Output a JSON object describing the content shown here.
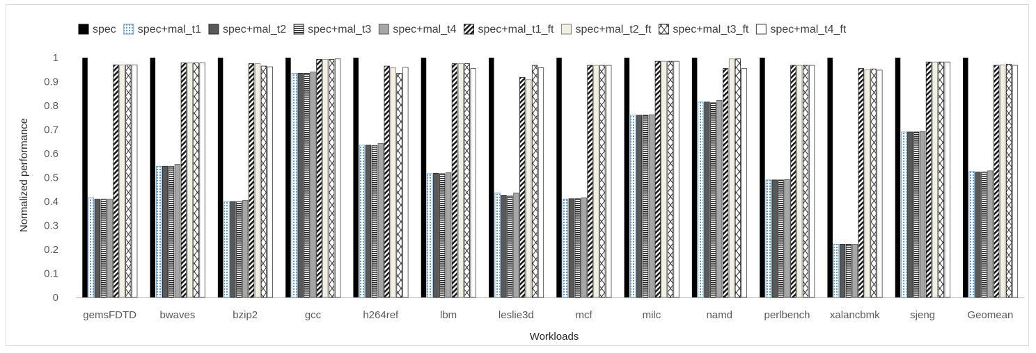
{
  "chart_data": {
    "type": "bar",
    "title": "",
    "xlabel": "Workloads",
    "ylabel": "Normalized performance",
    "ylim": [
      0,
      1
    ],
    "yticks": [
      "0",
      "0.1",
      "0.2",
      "0.3",
      "0.4",
      "0.5",
      "0.6",
      "0.7",
      "0.8",
      "0.9",
      "1"
    ],
    "legend_position": "top",
    "categories": [
      "gemsFDTD",
      "bwaves",
      "bzip2",
      "gcc",
      "h264ref",
      "lbm",
      "leslie3d",
      "mcf",
      "milc",
      "namd",
      "perlbench",
      "xalancbmk",
      "sjeng",
      "Geomean"
    ],
    "series": [
      {
        "name": "spec",
        "pattern": "solid-black",
        "values": [
          1,
          1,
          1,
          1,
          1,
          1,
          1,
          1,
          1,
          1,
          1,
          1,
          1,
          1
        ]
      },
      {
        "name": "spec+mal_t1",
        "pattern": "blue-dotted",
        "values": [
          0.415,
          0.547,
          0.4,
          0.935,
          0.635,
          0.516,
          0.435,
          0.41,
          0.76,
          0.815,
          0.49,
          0.222,
          0.69,
          0.525
        ]
      },
      {
        "name": "spec+mal_t2",
        "pattern": "dark-gray",
        "values": [
          0.41,
          0.547,
          0.4,
          0.935,
          0.635,
          0.518,
          0.425,
          0.412,
          0.76,
          0.815,
          0.49,
          0.222,
          0.69,
          0.523
        ]
      },
      {
        "name": "spec+mal_t3",
        "pattern": "horizontal-lines",
        "values": [
          0.41,
          0.547,
          0.4,
          0.935,
          0.633,
          0.516,
          0.423,
          0.412,
          0.76,
          0.812,
          0.49,
          0.222,
          0.69,
          0.523
        ]
      },
      {
        "name": "spec+mal_t4",
        "pattern": "light-gray",
        "values": [
          0.41,
          0.555,
          0.405,
          0.94,
          0.642,
          0.52,
          0.435,
          0.415,
          0.762,
          0.822,
          0.492,
          0.222,
          0.692,
          0.528
        ]
      },
      {
        "name": "spec+mal_t1_ft",
        "pattern": "diagonal-stripes",
        "values": [
          0.97,
          0.978,
          0.975,
          0.993,
          0.965,
          0.975,
          0.918,
          0.968,
          0.985,
          0.955,
          0.968,
          0.955,
          0.982,
          0.968
        ]
      },
      {
        "name": "spec+mal_t2_ft",
        "pattern": "beige",
        "values": [
          0.97,
          0.978,
          0.975,
          0.993,
          0.958,
          0.975,
          0.908,
          0.968,
          0.985,
          0.995,
          0.968,
          0.95,
          0.982,
          0.97
        ]
      },
      {
        "name": "spec+mal_t3_ft",
        "pattern": "cross-hatch",
        "values": [
          0.97,
          0.978,
          0.965,
          0.993,
          0.935,
          0.975,
          0.968,
          0.968,
          0.985,
          0.995,
          0.968,
          0.953,
          0.982,
          0.973
        ]
      },
      {
        "name": "spec+mal_t4_ft",
        "pattern": "white",
        "values": [
          0.97,
          0.978,
          0.962,
          0.995,
          0.96,
          0.955,
          0.958,
          0.968,
          0.985,
          0.955,
          0.968,
          0.948,
          0.982,
          0.968
        ]
      }
    ]
  }
}
